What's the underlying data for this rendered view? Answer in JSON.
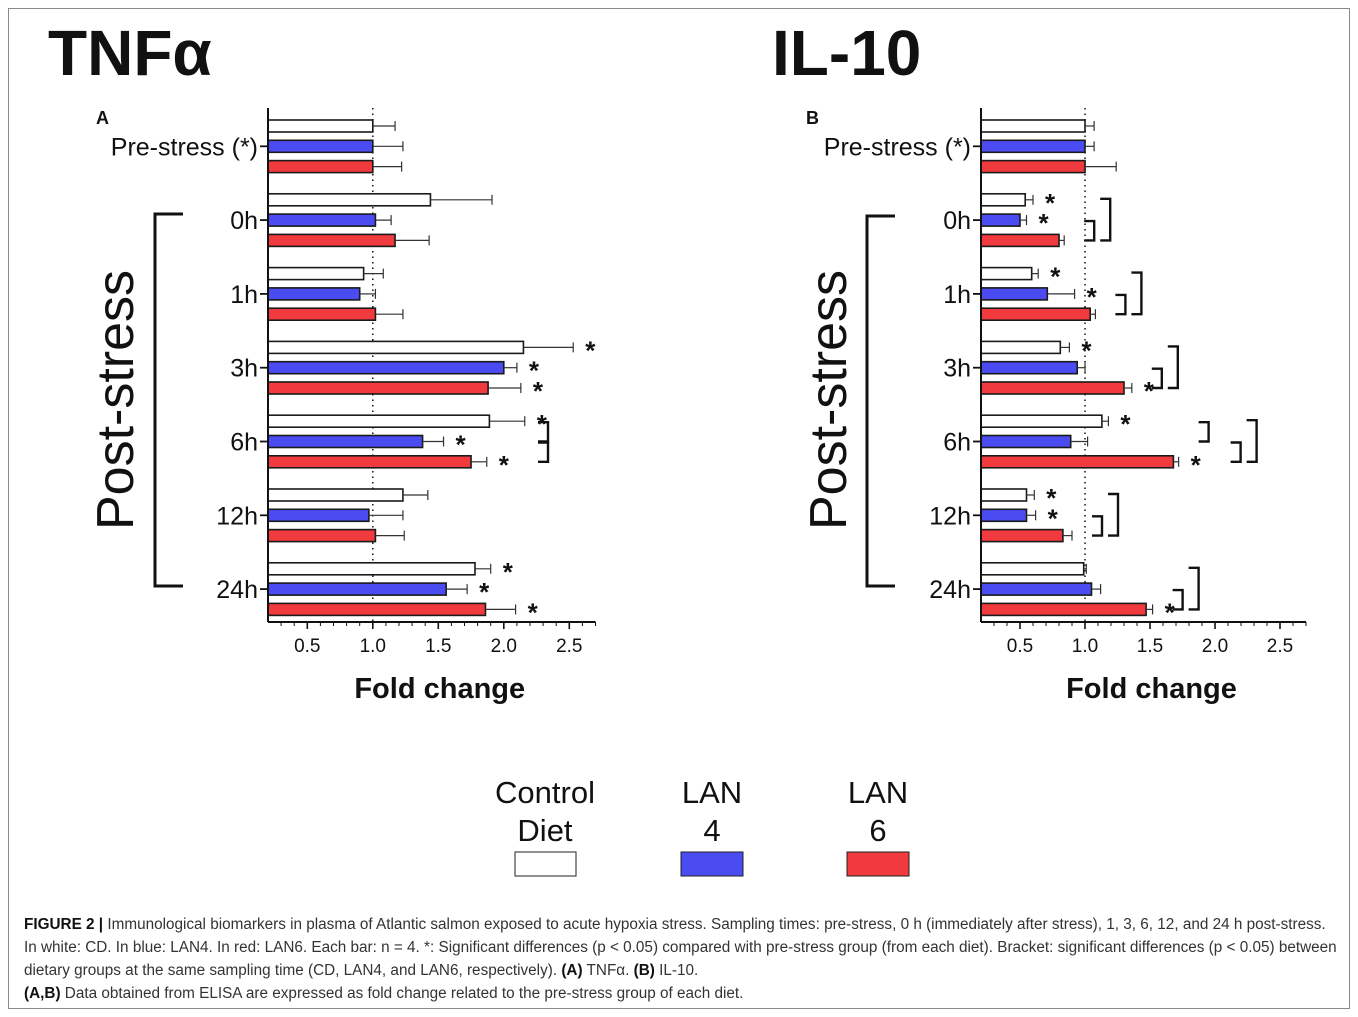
{
  "figure_label": "FIGURE 2 |",
  "caption": "Immunological biomarkers in plasma of Atlantic salmon exposed to acute hypoxia stress. Sampling times: pre-stress, 0 h (immediately after stress), 1, 3, 6, 12, and 24 h post-stress. In white: CD. In blue: LAN4. In red: LAN6. Each bar: n = 4. *: Significant differences (p < 0.05) compared with pre-stress group (from each diet). Bracket: significant differences (p < 0.05) between dietary groups at the same sampling time (CD, LAN4, and LAN6, respectively).",
  "caption_tail": [
    {
      "bold": "(A)",
      "text": " TNFα. "
    },
    {
      "bold": "(B)",
      "text": " IL-10. "
    },
    {
      "bold": "(A,B)",
      "text": " Data obtained from ELISA are expressed as fold change related to the pre-stress group of each diet."
    }
  ],
  "side_label": "Post-stress",
  "legend": [
    {
      "line1": "Control",
      "line2": "Diet",
      "color": "#ffffff"
    },
    {
      "line1": "LAN",
      "line2": "4",
      "color": "#4b4bf2"
    },
    {
      "line1": "LAN",
      "line2": "6",
      "color": "#f03a3e"
    }
  ],
  "colors": {
    "control": "#ffffff",
    "lan4": "#4b4bf2",
    "lan6": "#f03a3e",
    "bar_edge": "#1a1a1a"
  },
  "chart_data": [
    {
      "type": "bar",
      "orientation": "horizontal",
      "title": "TNFα",
      "panel": "A",
      "xlabel": "Fold change",
      "xticks": [
        "0.5",
        "1.0",
        "1.5",
        "2.0",
        "2.5"
      ],
      "xlim": [
        0.2,
        2.7
      ],
      "reference_line": 1.0,
      "categories": [
        "Pre-stress (*)",
        "0h",
        "1h",
        "3h",
        "6h",
        "12h",
        "24h"
      ],
      "series": [
        {
          "name": "Control Diet",
          "values": [
            1.0,
            1.44,
            0.93,
            2.15,
            1.89,
            1.23,
            1.78
          ],
          "errors": [
            0.17,
            0.47,
            0.15,
            0.38,
            0.27,
            0.19,
            0.12
          ],
          "sig": [
            false,
            false,
            false,
            true,
            true,
            false,
            true
          ]
        },
        {
          "name": "LAN 4",
          "values": [
            1.0,
            1.02,
            0.9,
            2.0,
            1.38,
            0.97,
            1.56
          ],
          "errors": [
            0.23,
            0.12,
            0.12,
            0.1,
            0.16,
            0.26,
            0.16
          ],
          "sig": [
            false,
            false,
            false,
            true,
            true,
            false,
            true
          ]
        },
        {
          "name": "LAN 6",
          "values": [
            1.0,
            1.17,
            1.02,
            1.88,
            1.75,
            1.02,
            1.86
          ],
          "errors": [
            0.22,
            0.26,
            0.21,
            0.25,
            0.12,
            0.22,
            0.23
          ],
          "sig": [
            false,
            false,
            false,
            true,
            true,
            false,
            true
          ]
        }
      ],
      "brackets": [
        {
          "group": 4,
          "from": 0,
          "to": 1,
          "level": 0
        },
        {
          "group": 4,
          "from": 1,
          "to": 2,
          "level": 0
        }
      ]
    },
    {
      "type": "bar",
      "orientation": "horizontal",
      "title": "IL-10",
      "panel": "B",
      "xlabel": "Fold change",
      "xticks": [
        "0.5",
        "1.0",
        "1.5",
        "2.0",
        "2.5"
      ],
      "xlim": [
        0.2,
        2.7
      ],
      "reference_line": 1.0,
      "categories": [
        "Pre-stress (*)",
        "0h",
        "1h",
        "3h",
        "6h",
        "12h",
        "24h"
      ],
      "series": [
        {
          "name": "Control Diet",
          "values": [
            1.0,
            0.54,
            0.59,
            0.81,
            1.13,
            0.55,
            0.99
          ],
          "errors": [
            0.07,
            0.06,
            0.05,
            0.07,
            0.05,
            0.06,
            0.02
          ],
          "sig": [
            false,
            true,
            true,
            true,
            true,
            true,
            false
          ]
        },
        {
          "name": "LAN 4",
          "values": [
            1.0,
            0.5,
            0.71,
            0.94,
            0.89,
            0.55,
            1.05
          ],
          "errors": [
            0.07,
            0.05,
            0.21,
            0.06,
            0.13,
            0.07,
            0.07
          ],
          "sig": [
            false,
            true,
            true,
            false,
            false,
            true,
            false
          ]
        },
        {
          "name": "LAN 6",
          "values": [
            1.0,
            0.8,
            1.04,
            1.3,
            1.68,
            0.83,
            1.47
          ],
          "errors": [
            0.24,
            0.04,
            0.04,
            0.06,
            0.04,
            0.07,
            0.05
          ],
          "sig": [
            false,
            false,
            false,
            true,
            true,
            false,
            true
          ]
        }
      ],
      "brackets": [
        {
          "group": 1,
          "from": 1,
          "to": 2,
          "level": 0
        },
        {
          "group": 1,
          "from": 0,
          "to": 2,
          "level": 1
        },
        {
          "group": 2,
          "from": 1,
          "to": 2,
          "level": 0
        },
        {
          "group": 2,
          "from": 0,
          "to": 2,
          "level": 1
        },
        {
          "group": 3,
          "from": 1,
          "to": 2,
          "level": 0
        },
        {
          "group": 3,
          "from": 0,
          "to": 2,
          "level": 1
        },
        {
          "group": 4,
          "from": 0,
          "to": 1,
          "level": 0
        },
        {
          "group": 4,
          "from": 1,
          "to": 2,
          "level": 2
        },
        {
          "group": 4,
          "from": 0,
          "to": 2,
          "level": 3
        },
        {
          "group": 5,
          "from": 1,
          "to": 2,
          "level": 0
        },
        {
          "group": 5,
          "from": 0,
          "to": 2,
          "level": 1
        },
        {
          "group": 6,
          "from": 1,
          "to": 2,
          "level": 0
        },
        {
          "group": 6,
          "from": 0,
          "to": 2,
          "level": 1
        }
      ]
    }
  ]
}
